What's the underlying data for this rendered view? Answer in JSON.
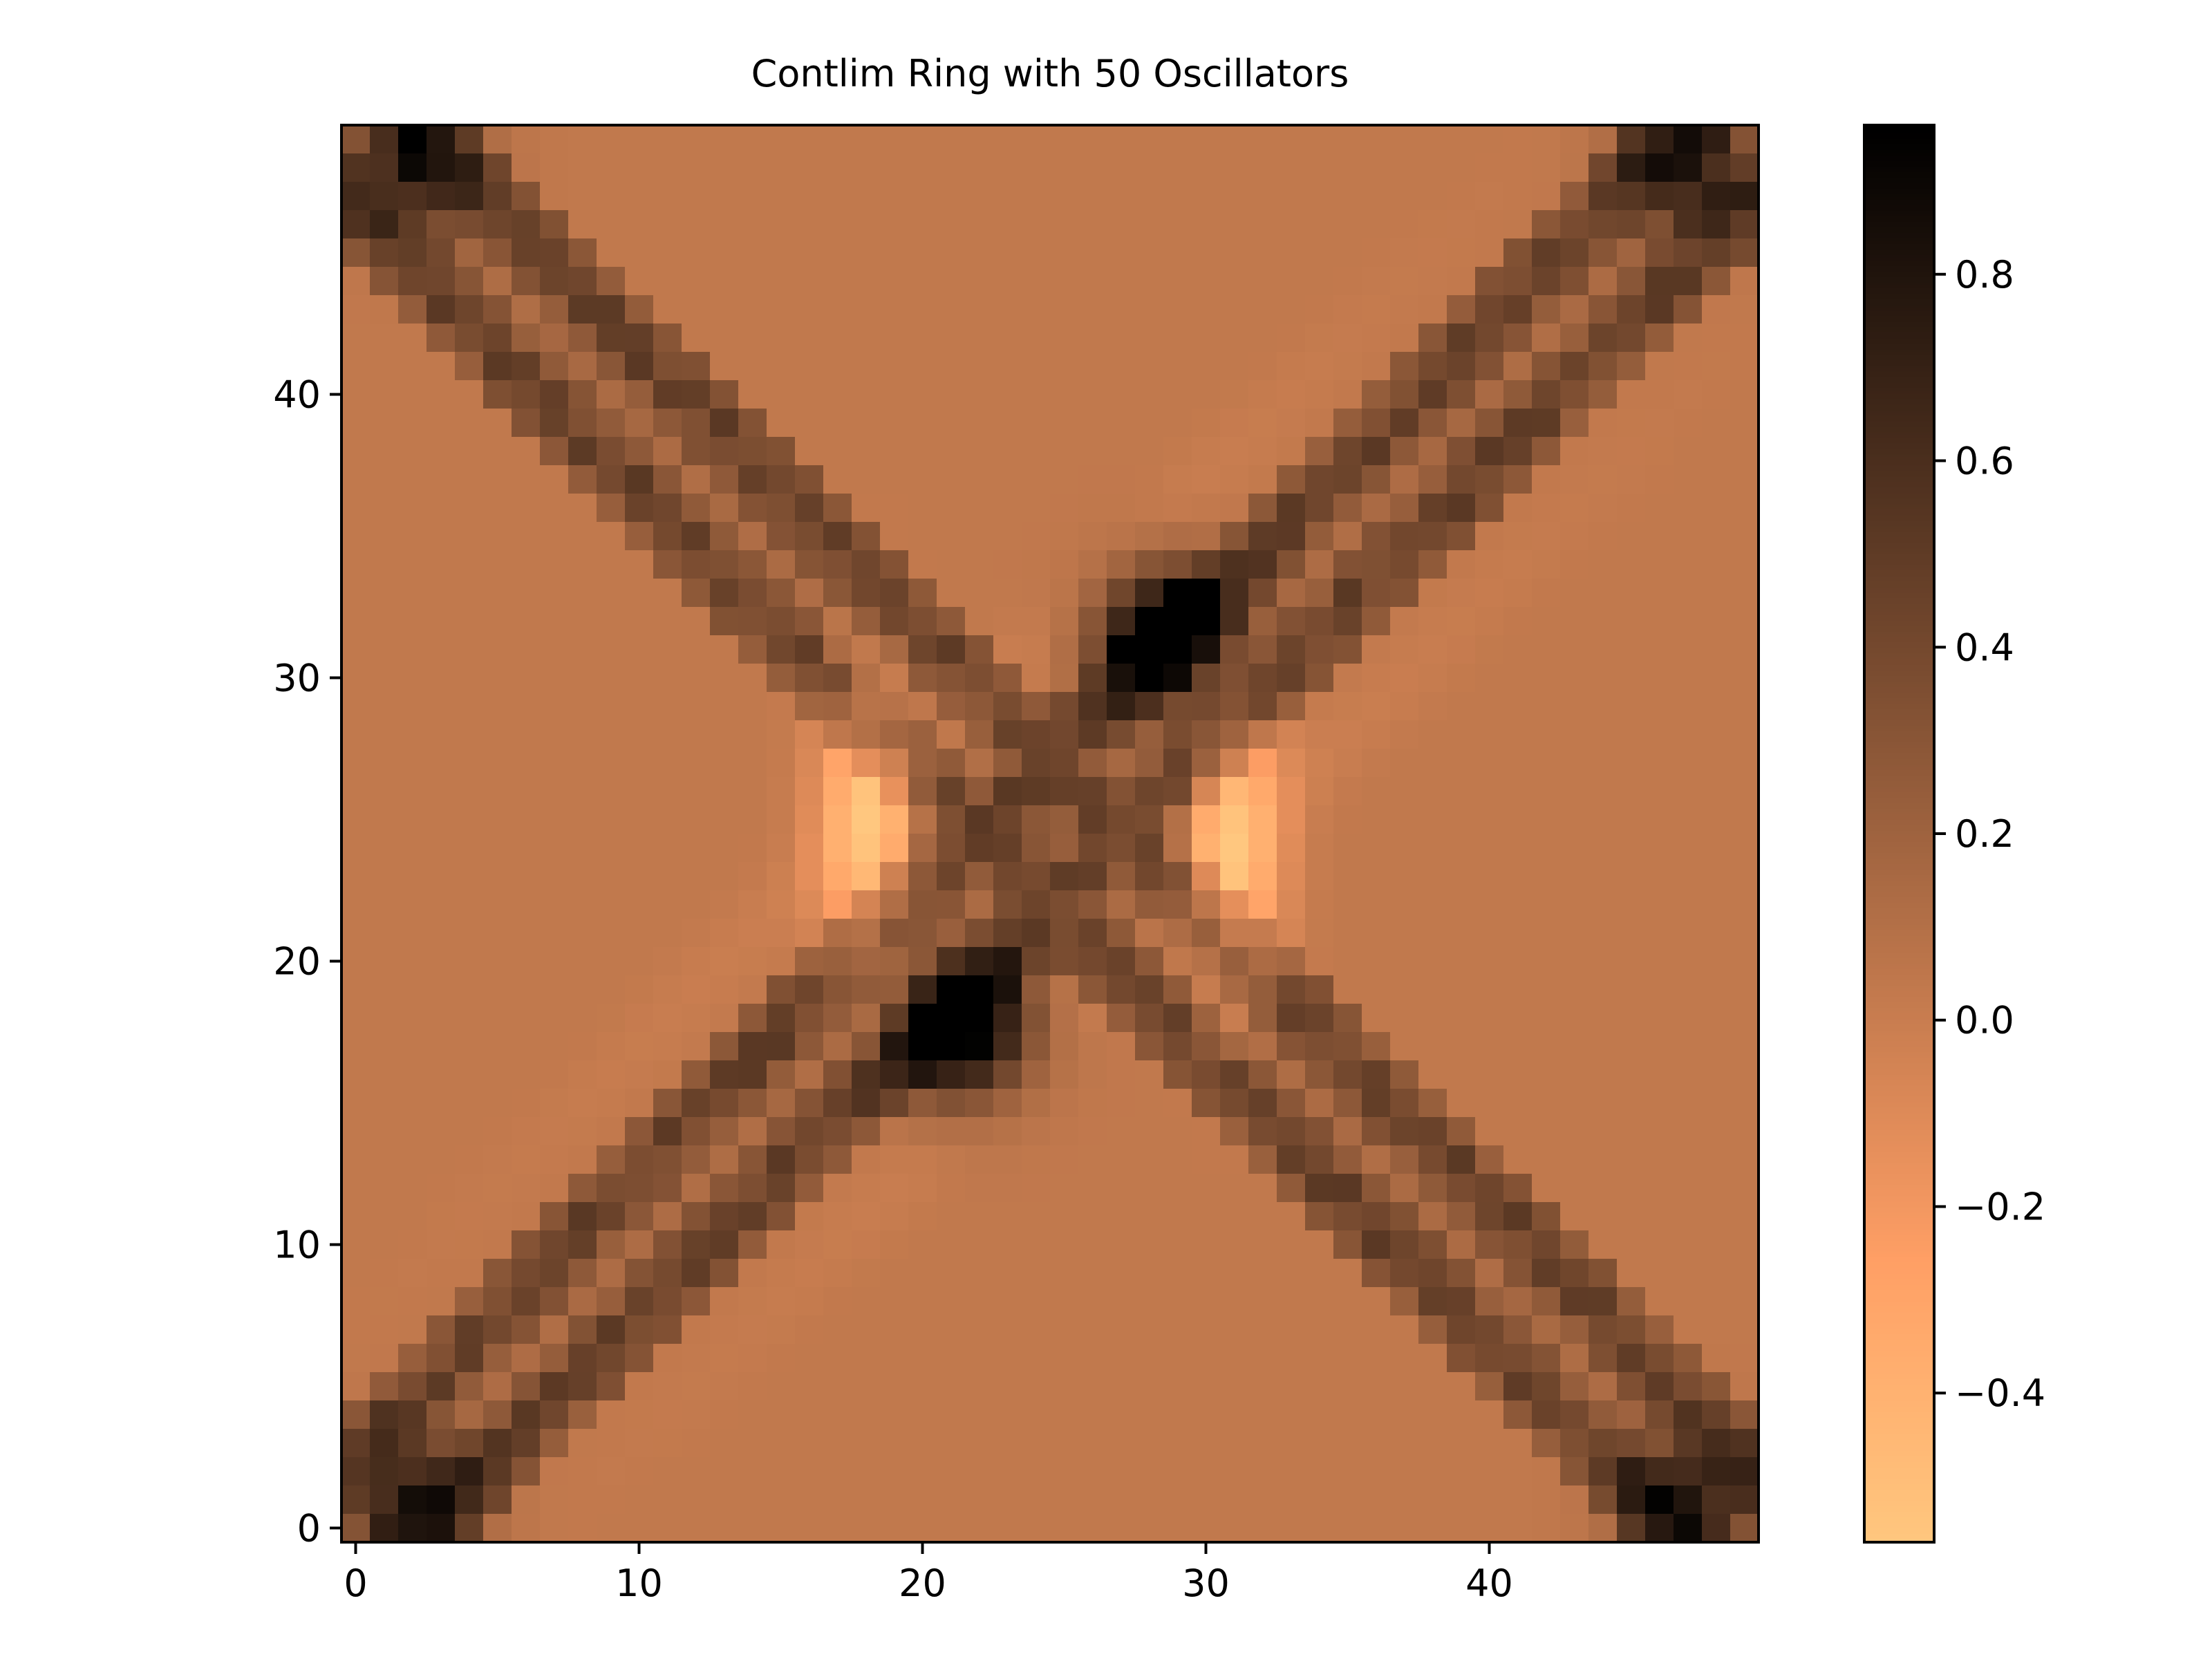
{
  "chart_data": {
    "type": "heatmap",
    "title": "Contlim Ring with 50 Oscillators",
    "xlabel": "",
    "ylabel": "",
    "n": 50,
    "xlim": [
      -0.5,
      49.5
    ],
    "ylim": [
      -0.5,
      49.5
    ],
    "origin": "lower",
    "x_ticks": [
      0,
      10,
      20,
      30,
      40
    ],
    "y_ticks": [
      0,
      10,
      20,
      30,
      40
    ],
    "x_tick_labels": [
      "0",
      "10",
      "20",
      "30",
      "40"
    ],
    "y_tick_labels": [
      "0",
      "10",
      "20",
      "30",
      "40"
    ],
    "colormap": "copper_r",
    "colormap_colors": [
      "#ffc77f",
      "#000000"
    ],
    "vmin": -0.56,
    "vmax": 0.96,
    "colorbar": {
      "ticks": [
        -0.4,
        -0.2,
        0.0,
        0.2,
        0.4,
        0.6,
        0.8
      ],
      "tick_labels": [
        "−0.4",
        "−0.2",
        "0.0",
        "0.2",
        "0.4",
        "0.6",
        "0.8"
      ]
    },
    "structure": {
      "description": "Symmetric matrix with two crossing diagonal bands (main diagonal i=j and anti-diagonal i+j=49) of strong positive values (~0.3-0.96), peaking near the center crossing at (20,18) and (29,31); light negative lobes (~-0.55) on either side of the crossing near (18,25) and (31,22); background near 0.0-0.05.",
      "background": 0.04,
      "diagonal_band_value": 0.42,
      "diagonal_band_halfwidth": 3.2,
      "peak_value": 0.96,
      "peak_points": [
        [
          21,
          17
        ],
        [
          22,
          18
        ],
        [
          28,
          31
        ],
        [
          29,
          32
        ],
        [
          2,
          1
        ],
        [
          47,
          1
        ],
        [
          2,
          48
        ],
        [
          47,
          48
        ]
      ],
      "negative_lobe_value": -0.55,
      "negative_lobe_points": [
        [
          18,
          25
        ],
        [
          31,
          24
        ]
      ]
    }
  }
}
